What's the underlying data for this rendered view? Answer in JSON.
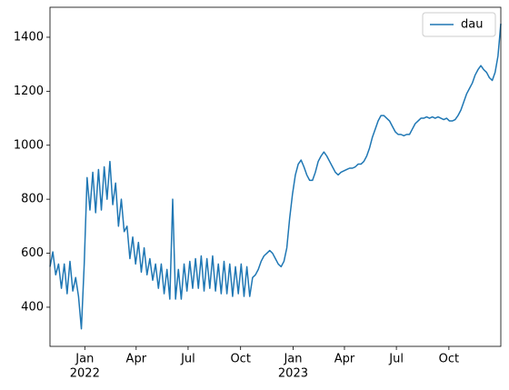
{
  "chart_data": {
    "type": "line",
    "x": [
      0,
      5,
      10,
      15,
      20,
      25,
      30,
      35,
      40,
      45,
      50,
      55,
      60,
      65,
      70,
      75,
      80,
      85,
      90,
      95,
      100,
      105,
      110,
      115,
      120,
      125,
      130,
      135,
      140,
      145,
      150,
      155,
      160,
      165,
      170,
      175,
      180,
      185,
      190,
      195,
      200,
      205,
      210,
      215,
      220,
      225,
      230,
      235,
      240,
      245,
      250,
      255,
      260,
      265,
      270,
      275,
      280,
      285,
      290,
      295,
      300,
      305,
      310,
      315,
      320,
      325,
      330,
      335,
      340,
      345,
      350,
      355,
      360,
      365,
      370,
      375,
      380,
      385,
      390,
      395,
      400,
      405,
      410,
      415,
      420,
      425,
      430,
      435,
      440,
      445,
      450,
      455,
      460,
      465,
      470,
      475,
      480,
      485,
      490,
      495,
      500,
      505,
      510,
      515,
      520,
      525,
      530,
      535,
      540,
      545,
      550,
      555,
      560,
      565,
      570,
      575,
      580,
      585,
      590,
      595,
      600,
      605,
      610,
      615,
      620,
      625,
      630,
      635,
      640,
      645,
      650,
      655,
      660,
      665,
      670,
      675,
      680,
      685,
      690,
      695,
      700,
      705,
      710,
      715,
      720,
      725,
      730,
      735,
      740,
      745,
      750,
      755,
      760,
      765,
      770,
      775,
      780,
      785,
      790
    ],
    "series": [
      {
        "name": "dau",
        "color": "#1f77b4",
        "values": [
          550,
          605,
          520,
          560,
          470,
          560,
          450,
          570,
          460,
          510,
          440,
          320,
          560,
          880,
          760,
          900,
          750,
          910,
          760,
          920,
          800,
          940,
          780,
          860,
          700,
          800,
          680,
          700,
          580,
          660,
          560,
          640,
          530,
          620,
          520,
          580,
          500,
          560,
          470,
          560,
          450,
          540,
          430,
          800,
          430,
          540,
          430,
          560,
          460,
          570,
          470,
          580,
          470,
          590,
          460,
          580,
          470,
          590,
          460,
          560,
          450,
          570,
          450,
          560,
          440,
          550,
          450,
          560,
          440,
          550,
          440,
          510,
          520,
          540,
          570,
          590,
          600,
          610,
          600,
          580,
          560,
          550,
          570,
          620,
          730,
          820,
          890,
          930,
          945,
          920,
          890,
          870,
          870,
          900,
          940,
          960,
          975,
          960,
          940,
          920,
          900,
          890,
          900,
          905,
          910,
          915,
          915,
          920,
          930,
          930,
          940,
          960,
          990,
          1030,
          1060,
          1090,
          1110,
          1110,
          1100,
          1090,
          1070,
          1050,
          1040,
          1040,
          1035,
          1040,
          1040,
          1060,
          1080,
          1090,
          1100,
          1100,
          1105,
          1100,
          1105,
          1100,
          1105,
          1100,
          1095,
          1100,
          1090,
          1090,
          1095,
          1110,
          1130,
          1160,
          1190,
          1210,
          1230,
          1260,
          1280,
          1295,
          1280,
          1270,
          1250,
          1240,
          1270,
          1330,
          1450
        ]
      }
    ],
    "xlim": [
      0,
      790
    ],
    "xticks": [
      {
        "value": 61,
        "label": "Jan"
      },
      {
        "value": 151,
        "label": "Apr"
      },
      {
        "value": 242,
        "label": "Jul"
      },
      {
        "value": 334,
        "label": "Oct"
      },
      {
        "value": 426,
        "label": "Jan"
      },
      {
        "value": 516,
        "label": "Apr"
      },
      {
        "value": 607,
        "label": "Jul"
      },
      {
        "value": 699,
        "label": "Oct"
      }
    ],
    "x_year_labels": [
      {
        "value": 61,
        "label": "2022"
      },
      {
        "value": 426,
        "label": "2023"
      }
    ],
    "ylim": [
      255,
      1511
    ],
    "yticks": [
      400,
      600,
      800,
      1000,
      1200,
      1400
    ],
    "legend": "upper right",
    "grid": false
  }
}
